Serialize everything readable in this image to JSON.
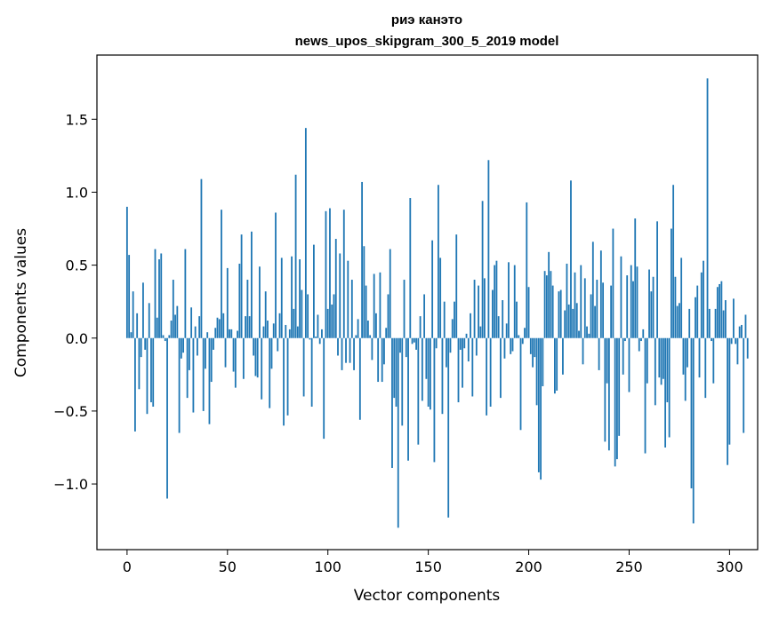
{
  "chart_data": {
    "type": "bar",
    "title_line1": "риэ канэто",
    "title_line2": "news_upos_skipgram_300_5_2019 model",
    "xlabel": "Vector components",
    "ylabel": "Components values",
    "xlim": [
      -15,
      314
    ],
    "ylim": [
      -1.45,
      1.94
    ],
    "x_ticks": [
      0,
      50,
      100,
      150,
      200,
      250,
      300
    ],
    "x_tick_labels": [
      "0",
      "50",
      "100",
      "150",
      "200",
      "250",
      "300"
    ],
    "y_ticks": [
      -1.0,
      -0.5,
      0.0,
      0.5,
      1.0,
      1.5
    ],
    "y_tick_labels": [
      "−1.0",
      "−0.5",
      "0.0",
      "0.5",
      "1.0",
      "1.5"
    ],
    "bar_color": "#1f77b4",
    "grid": false,
    "values": [
      0.9,
      0.57,
      0.04,
      0.32,
      -0.64,
      0.17,
      -0.35,
      -0.13,
      0.38,
      -0.08,
      -0.52,
      0.24,
      -0.44,
      -0.47,
      0.61,
      0.14,
      0.54,
      0.58,
      0.02,
      -0.02,
      -1.1,
      0.02,
      0.12,
      0.4,
      0.16,
      0.22,
      -0.65,
      -0.14,
      -0.1,
      0.61,
      -0.41,
      -0.22,
      0.21,
      -0.51,
      0.08,
      -0.12,
      0.15,
      1.09,
      -0.5,
      -0.21,
      0.04,
      -0.59,
      -0.3,
      -0.08,
      0.07,
      0.14,
      0.13,
      0.88,
      0.17,
      -0.2,
      0.48,
      0.06,
      0.06,
      -0.23,
      -0.34,
      0.05,
      0.51,
      0.71,
      -0.28,
      0.15,
      0.4,
      0.15,
      0.73,
      -0.12,
      -0.26,
      -0.27,
      0.49,
      -0.42,
      0.08,
      0.32,
      0.12,
      -0.48,
      -0.21,
      0.1,
      0.86,
      -0.09,
      0.17,
      0.55,
      -0.6,
      0.09,
      -0.53,
      0.06,
      0.56,
      0.2,
      1.12,
      0.08,
      0.54,
      0.33,
      -0.4,
      1.44,
      0.3,
      -0.01,
      -0.47,
      0.64,
      0.01,
      0.16,
      -0.04,
      0.06,
      -0.69,
      0.87,
      0.2,
      0.89,
      0.23,
      0.3,
      0.68,
      -0.12,
      0.58,
      -0.22,
      0.88,
      -0.17,
      0.53,
      -0.17,
      0.4,
      -0.22,
      0.02,
      0.13,
      -0.56,
      1.07,
      0.63,
      0.36,
      0.12,
      0.02,
      -0.15,
      0.44,
      0.17,
      -0.3,
      0.45,
      -0.3,
      -0.18,
      0.07,
      0.3,
      0.61,
      -0.89,
      -0.41,
      -0.47,
      -1.3,
      -0.1,
      -0.6,
      0.4,
      -0.13,
      -0.84,
      0.96,
      -0.04,
      -0.03,
      -0.08,
      -0.73,
      0.15,
      -0.43,
      0.3,
      -0.28,
      -0.47,
      -0.49,
      0.67,
      -0.85,
      -0.07,
      1.05,
      0.55,
      -0.52,
      0.25,
      -0.2,
      -1.23,
      -0.1,
      0.13,
      0.25,
      0.71,
      -0.44,
      -0.08,
      -0.34,
      -0.07,
      0.03,
      -0.16,
      0.17,
      -0.4,
      0.4,
      -0.12,
      0.36,
      0.08,
      0.94,
      0.41,
      -0.53,
      1.22,
      -0.47,
      0.33,
      0.5,
      0.53,
      0.15,
      -0.41,
      0.26,
      -0.14,
      0.1,
      0.52,
      -0.11,
      -0.09,
      0.5,
      0.25,
      0.02,
      -0.63,
      -0.04,
      0.07,
      0.93,
      0.35,
      -0.11,
      -0.2,
      -0.13,
      -0.46,
      -0.92,
      -0.97,
      -0.33,
      0.46,
      0.43,
      0.59,
      0.46,
      0.36,
      -0.38,
      -0.36,
      0.32,
      0.33,
      -0.25,
      0.19,
      0.51,
      0.23,
      1.08,
      0.2,
      0.45,
      0.24,
      0.05,
      0.5,
      -0.18,
      0.41,
      0.08,
      0.03,
      0.3,
      0.66,
      0.22,
      0.4,
      -0.22,
      0.6,
      0.38,
      -0.71,
      -0.31,
      -0.77,
      0.36,
      0.75,
      -0.88,
      -0.83,
      -0.67,
      0.56,
      -0.25,
      -0.02,
      0.43,
      -0.37,
      0.5,
      0.39,
      0.82,
      0.49,
      -0.09,
      -0.02,
      0.06,
      -0.79,
      -0.31,
      0.47,
      0.32,
      0.42,
      -0.46,
      0.8,
      -0.27,
      -0.32,
      -0.28,
      -0.75,
      -0.44,
      -0.68,
      0.75,
      1.05,
      0.42,
      0.22,
      0.24,
      0.55,
      -0.25,
      -0.43,
      -0.2,
      0.2,
      -1.03,
      -1.27,
      0.28,
      0.36,
      -0.27,
      0.45,
      0.53,
      -0.41,
      1.78,
      0.2,
      -0.02,
      -0.31,
      0.2,
      0.35,
      0.37,
      0.39,
      0.19,
      0.26,
      -0.87,
      -0.73,
      -0.04,
      0.27,
      -0.04,
      -0.18,
      0.08,
      0.09,
      -0.65,
      0.16,
      -0.14
    ]
  }
}
